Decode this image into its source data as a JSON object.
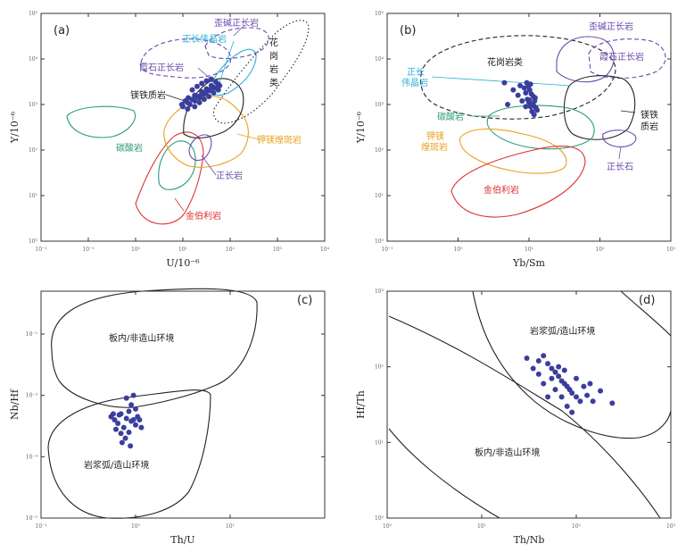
{
  "chart_data": [
    {
      "panel": "(a)",
      "type": "scatter",
      "xlabel": "U/10⁻⁶",
      "ylabel": "Y/10⁻⁶",
      "xscale": "log",
      "yscale": "log",
      "xlim": [
        0.01,
        10000
      ],
      "ylim": [
        1,
        100000
      ],
      "xticks": [
        "10⁻²",
        "10⁻¹",
        "10⁰",
        "10¹",
        "10²",
        "10³",
        "10⁴"
      ],
      "yticks": [
        "10⁰",
        "10¹",
        "10²",
        "10³",
        "10⁴",
        "10⁵"
      ],
      "regions": [
        {
          "label": "歪碱正长岩",
          "color": "#6a4aa8"
        },
        {
          "label": "正长伟晶岩",
          "color": "#2ab0d8"
        },
        {
          "label": "霞石正长岩",
          "color": "#6a4aa8"
        },
        {
          "label": "花岗岩类",
          "color": "#222222"
        },
        {
          "label": "镁铁质岩",
          "color": "#222222"
        },
        {
          "label": "碳酸岩",
          "color": "#2a9a78"
        },
        {
          "label": "钾镁煌斑岩",
          "color": "#e8a020"
        },
        {
          "label": "正长岩",
          "color": "#6a4aa8"
        },
        {
          "label": "金伯利岩",
          "color": "#e03030"
        }
      ],
      "points": [
        {
          "x": 10.0,
          "y": 900
        },
        {
          "x": 12.6,
          "y": 1100
        },
        {
          "x": 15.8,
          "y": 1300
        },
        {
          "x": 20.0,
          "y": 1500
        },
        {
          "x": 25.1,
          "y": 1900
        },
        {
          "x": 31.6,
          "y": 2200
        },
        {
          "x": 39.8,
          "y": 2600
        },
        {
          "x": 50.1,
          "y": 3100
        },
        {
          "x": 11.2,
          "y": 1200
        },
        {
          "x": 14.1,
          "y": 1000
        },
        {
          "x": 17.8,
          "y": 1600
        },
        {
          "x": 22.4,
          "y": 1400
        },
        {
          "x": 28.2,
          "y": 1700
        },
        {
          "x": 35.5,
          "y": 2000
        },
        {
          "x": 44.7,
          "y": 2400
        },
        {
          "x": 56.2,
          "y": 2800
        },
        {
          "x": 12.6,
          "y": 800
        },
        {
          "x": 17.8,
          "y": 900
        },
        {
          "x": 22.4,
          "y": 1100
        },
        {
          "x": 28.2,
          "y": 1300
        },
        {
          "x": 35.5,
          "y": 1500
        },
        {
          "x": 44.7,
          "y": 1800
        },
        {
          "x": 56.2,
          "y": 2100
        },
        {
          "x": 15.8,
          "y": 2100
        },
        {
          "x": 20.0,
          "y": 2500
        },
        {
          "x": 25.1,
          "y": 2900
        },
        {
          "x": 31.6,
          "y": 3300
        },
        {
          "x": 39.8,
          "y": 3600
        },
        {
          "x": 9.5,
          "y": 1000
        },
        {
          "x": 13.0,
          "y": 1400
        },
        {
          "x": 18.0,
          "y": 1200
        },
        {
          "x": 24.0,
          "y": 1600
        },
        {
          "x": 30.0,
          "y": 1800
        },
        {
          "x": 38.0,
          "y": 2100
        },
        {
          "x": 48.0,
          "y": 2300
        },
        {
          "x": 60.0,
          "y": 2600
        }
      ]
    },
    {
      "panel": "(b)",
      "type": "scatter",
      "xlabel": "Yb/Sm",
      "ylabel": "Y/10⁻⁶",
      "xscale": "log",
      "yscale": "log",
      "xlim": [
        0.1,
        1000
      ],
      "ylim": [
        1,
        100000
      ],
      "xticks": [
        "10⁻¹",
        "10⁰",
        "10¹",
        "10²",
        "10³"
      ],
      "yticks": [
        "10⁰",
        "10¹",
        "10²",
        "10³",
        "10⁴",
        "10⁵"
      ],
      "regions": [
        {
          "label": "花岗岩类",
          "color": "#222222"
        },
        {
          "label": "歪碱正长岩",
          "color": "#6a4aa8"
        },
        {
          "label": "霞石正长岩",
          "color": "#6a4aa8"
        },
        {
          "label": "正长伟晶岩",
          "color": "#2ab0d8"
        },
        {
          "label": "碳酸岩",
          "color": "#2a9a78"
        },
        {
          "label": "钾镁煌斑岩",
          "color": "#e8a020"
        },
        {
          "label": "镁铁质岩",
          "color": "#222222"
        },
        {
          "label": "正长石",
          "color": "#6a4aa8"
        },
        {
          "label": "金伯利岩",
          "color": "#e03030"
        }
      ],
      "points": [
        {
          "x": 9.0,
          "y": 1800
        },
        {
          "x": 9.5,
          "y": 1300
        },
        {
          "x": 10.0,
          "y": 1100
        },
        {
          "x": 10.5,
          "y": 900
        },
        {
          "x": 11.0,
          "y": 700
        },
        {
          "x": 11.5,
          "y": 1500
        },
        {
          "x": 12.0,
          "y": 1200
        },
        {
          "x": 10.2,
          "y": 2100
        },
        {
          "x": 9.8,
          "y": 2500
        },
        {
          "x": 11.2,
          "y": 1000
        },
        {
          "x": 12.5,
          "y": 850
        },
        {
          "x": 10.8,
          "y": 1700
        },
        {
          "x": 9.3,
          "y": 3000
        },
        {
          "x": 10.5,
          "y": 2800
        },
        {
          "x": 11.8,
          "y": 600
        },
        {
          "x": 13.0,
          "y": 750
        },
        {
          "x": 8.6,
          "y": 2300
        },
        {
          "x": 12.2,
          "y": 1400
        },
        {
          "x": 10.1,
          "y": 1250
        },
        {
          "x": 11.6,
          "y": 950
        },
        {
          "x": 4.5,
          "y": 3000
        },
        {
          "x": 6.0,
          "y": 2100
        },
        {
          "x": 7.0,
          "y": 1600
        },
        {
          "x": 5.0,
          "y": 1000
        },
        {
          "x": 8.0,
          "y": 1200
        },
        {
          "x": 9.0,
          "y": 900
        },
        {
          "x": 7.5,
          "y": 2600
        }
      ]
    },
    {
      "panel": "(c)",
      "type": "scatter",
      "xlabel": "Th/U",
      "ylabel": "Nb/Hf",
      "xscale": "log",
      "yscale": "log",
      "xlim": [
        0.1,
        100
      ],
      "ylim": [
        1e-05,
        0.05
      ],
      "xticks": [
        "10⁻¹",
        "10⁰",
        "10¹"
      ],
      "yticks": [
        "10⁻⁵",
        "10⁻⁴",
        "10⁻³",
        "10⁻²"
      ],
      "regions": [
        {
          "label": "板内/非造山环境",
          "color": "#222222"
        },
        {
          "label": "岩浆弧/造山环境",
          "color": "#222222"
        }
      ],
      "points": [
        {
          "x": 0.55,
          "y": 0.00045
        },
        {
          "x": 0.6,
          "y": 0.0004
        },
        {
          "x": 0.65,
          "y": 0.00035
        },
        {
          "x": 0.7,
          "y": 0.0005
        },
        {
          "x": 0.75,
          "y": 0.0003
        },
        {
          "x": 0.8,
          "y": 0.00042
        },
        {
          "x": 0.85,
          "y": 0.00055
        },
        {
          "x": 0.9,
          "y": 0.00038
        },
        {
          "x": 0.95,
          "y": 0.0004
        },
        {
          "x": 1.0,
          "y": 0.00033
        },
        {
          "x": 0.62,
          "y": 0.00028
        },
        {
          "x": 0.7,
          "y": 0.00024
        },
        {
          "x": 0.78,
          "y": 0.0002
        },
        {
          "x": 0.85,
          "y": 0.00025
        },
        {
          "x": 1.05,
          "y": 0.00045
        },
        {
          "x": 1.1,
          "y": 0.0004
        },
        {
          "x": 0.9,
          "y": 0.0007
        },
        {
          "x": 0.8,
          "y": 0.0009
        },
        {
          "x": 0.95,
          "y": 0.001
        },
        {
          "x": 0.72,
          "y": 0.00017
        },
        {
          "x": 0.88,
          "y": 0.00015
        },
        {
          "x": 0.58,
          "y": 0.0005
        },
        {
          "x": 1.15,
          "y": 0.0003
        },
        {
          "x": 1.0,
          "y": 0.0006
        },
        {
          "x": 0.67,
          "y": 0.00048
        }
      ]
    },
    {
      "panel": "(d)",
      "type": "scatter",
      "xlabel": "Th/Nb",
      "ylabel": "Hf/Th",
      "xscale": "log",
      "yscale": "log",
      "xlim": [
        1,
        1000
      ],
      "ylim": [
        1,
        1000
      ],
      "xticks": [
        "10⁰",
        "10¹",
        "10²",
        "10³"
      ],
      "yticks": [
        "10⁰",
        "10¹",
        "10²",
        "10³"
      ],
      "regions": [
        {
          "label": "岩浆弧/造山环境",
          "color": "#222222"
        },
        {
          "label": "板内/非造山环境",
          "color": "#222222"
        }
      ],
      "points": [
        {
          "x": 30,
          "y": 130
        },
        {
          "x": 40,
          "y": 120
        },
        {
          "x": 45,
          "y": 140
        },
        {
          "x": 50,
          "y": 110
        },
        {
          "x": 55,
          "y": 95
        },
        {
          "x": 60,
          "y": 85
        },
        {
          "x": 65,
          "y": 75
        },
        {
          "x": 70,
          "y": 65
        },
        {
          "x": 75,
          "y": 60
        },
        {
          "x": 80,
          "y": 55
        },
        {
          "x": 85,
          "y": 50
        },
        {
          "x": 90,
          "y": 45
        },
        {
          "x": 100,
          "y": 40
        },
        {
          "x": 110,
          "y": 35
        },
        {
          "x": 130,
          "y": 42
        },
        {
          "x": 150,
          "y": 35
        },
        {
          "x": 180,
          "y": 48
        },
        {
          "x": 240,
          "y": 33
        },
        {
          "x": 40,
          "y": 80
        },
        {
          "x": 45,
          "y": 60
        },
        {
          "x": 55,
          "y": 70
        },
        {
          "x": 60,
          "y": 50
        },
        {
          "x": 70,
          "y": 40
        },
        {
          "x": 80,
          "y": 30
        },
        {
          "x": 90,
          "y": 25
        },
        {
          "x": 50,
          "y": 40
        },
        {
          "x": 65,
          "y": 100
        },
        {
          "x": 35,
          "y": 95
        },
        {
          "x": 100,
          "y": 70
        },
        {
          "x": 120,
          "y": 55
        },
        {
          "x": 75,
          "y": 90
        },
        {
          "x": 140,
          "y": 60
        }
      ]
    }
  ]
}
